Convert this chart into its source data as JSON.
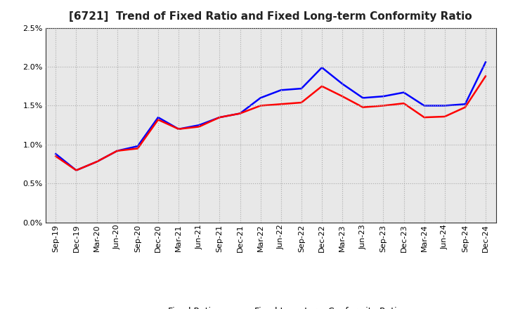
{
  "title": "[6721]  Trend of Fixed Ratio and Fixed Long-term Conformity Ratio",
  "x_labels": [
    "Sep-19",
    "Dec-19",
    "Mar-20",
    "Jun-20",
    "Sep-20",
    "Dec-20",
    "Mar-21",
    "Jun-21",
    "Sep-21",
    "Dec-21",
    "Mar-22",
    "Jun-22",
    "Sep-22",
    "Dec-22",
    "Mar-23",
    "Jun-23",
    "Sep-23",
    "Dec-23",
    "Mar-24",
    "Jun-24",
    "Sep-24",
    "Dec-24"
  ],
  "fixed_ratio": [
    0.0088,
    0.0067,
    0.0078,
    0.0092,
    0.0098,
    0.0135,
    0.012,
    0.0125,
    0.0135,
    0.014,
    0.016,
    0.017,
    0.0172,
    0.0199,
    0.0178,
    0.016,
    0.0162,
    0.0167,
    0.015,
    0.015,
    0.0152,
    0.0206
  ],
  "fixed_lt_ratio": [
    0.0085,
    0.0067,
    0.0078,
    0.0092,
    0.0095,
    0.0132,
    0.012,
    0.0123,
    0.0135,
    0.014,
    0.015,
    0.0152,
    0.0154,
    0.0175,
    0.0162,
    0.0148,
    0.015,
    0.0153,
    0.0135,
    0.0136,
    0.0148,
    0.0188
  ],
  "fixed_ratio_color": "#0000FF",
  "fixed_lt_ratio_color": "#FF0000",
  "background_color": "#ffffff",
  "plot_bg_color": "#e8e8e8",
  "ylim": [
    0.0,
    0.025
  ],
  "yticks": [
    0.0,
    0.005,
    0.01,
    0.015,
    0.02,
    0.025
  ],
  "grid_color": "#aaaaaa",
  "legend_fixed_ratio": "Fixed Ratio",
  "legend_fixed_lt_ratio": "Fixed Long-term Conformity Ratio",
  "line_width": 1.8,
  "title_fontsize": 11,
  "tick_fontsize": 8,
  "legend_fontsize": 9
}
